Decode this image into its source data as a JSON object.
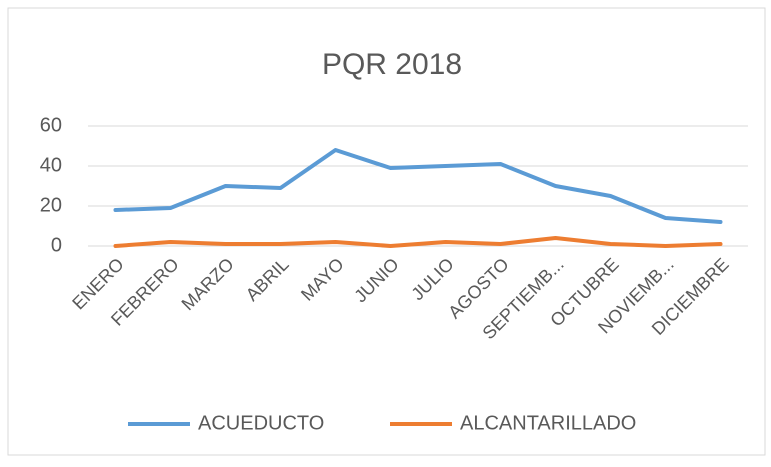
{
  "chart_data": {
    "type": "line",
    "title": "PQR 2018",
    "categories": [
      "ENERO",
      "FEBRERO",
      "MARZO",
      "ABRIL",
      "MAYO",
      "JUNIO",
      "JULIO",
      "AGOSTO",
      "SEPTIEMB...",
      "OCTUBRE",
      "NOVIEMB...",
      "DICIEMBRE"
    ],
    "series": [
      {
        "name": "ACUEDUCTO",
        "color": "#5b9bd5",
        "values": [
          18,
          19,
          30,
          29,
          48,
          39,
          40,
          41,
          30,
          25,
          14,
          12
        ]
      },
      {
        "name": "ALCANTARILLADO",
        "color": "#ed7d31",
        "values": [
          0,
          2,
          1,
          1,
          2,
          0,
          2,
          1,
          4,
          1,
          0,
          1
        ]
      }
    ],
    "ylim": [
      0,
      60
    ],
    "yticks": [
      0,
      20,
      40,
      60
    ],
    "grid": true,
    "legend": "bottom"
  }
}
